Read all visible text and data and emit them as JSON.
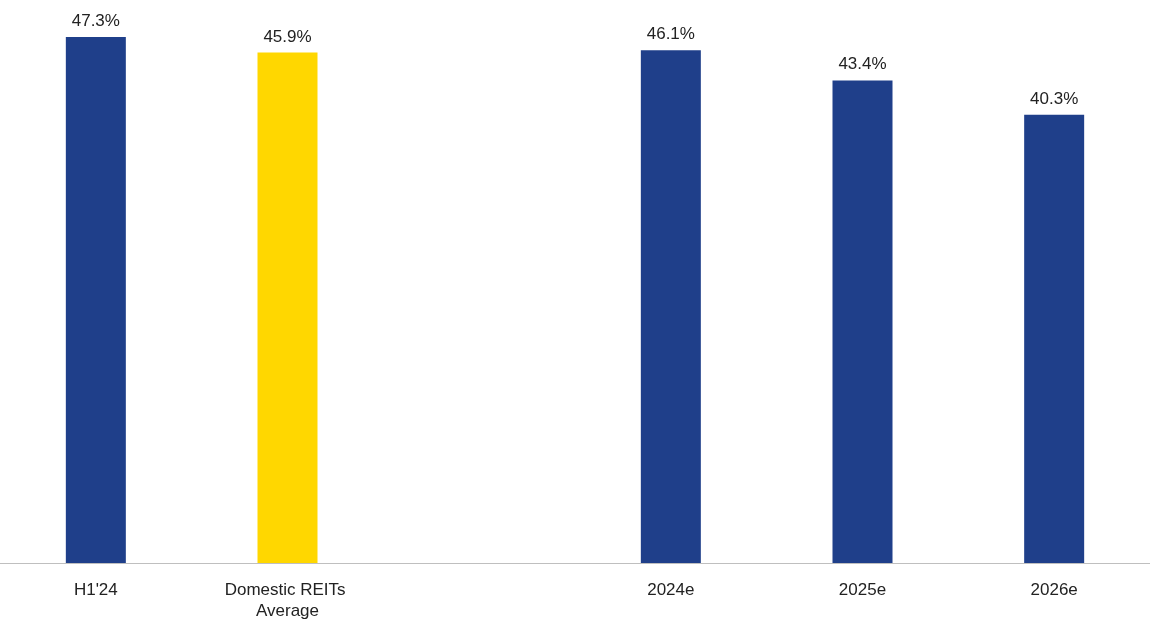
{
  "chart_data": {
    "type": "bar",
    "categories": [
      "H1'24",
      "Domestic REITs Average",
      null,
      "2024e",
      "2025e",
      "2026e"
    ],
    "values": [
      47.3,
      45.9,
      null,
      46.1,
      43.4,
      40.3
    ],
    "colors": [
      "#1f3f8a",
      "#ffd700",
      null,
      "#1f3f8a",
      "#1f3f8a",
      "#1f3f8a"
    ],
    "value_labels": [
      "47.3%",
      "45.9%",
      null,
      "46.1%",
      "43.4%",
      "40.3%"
    ]
  }
}
